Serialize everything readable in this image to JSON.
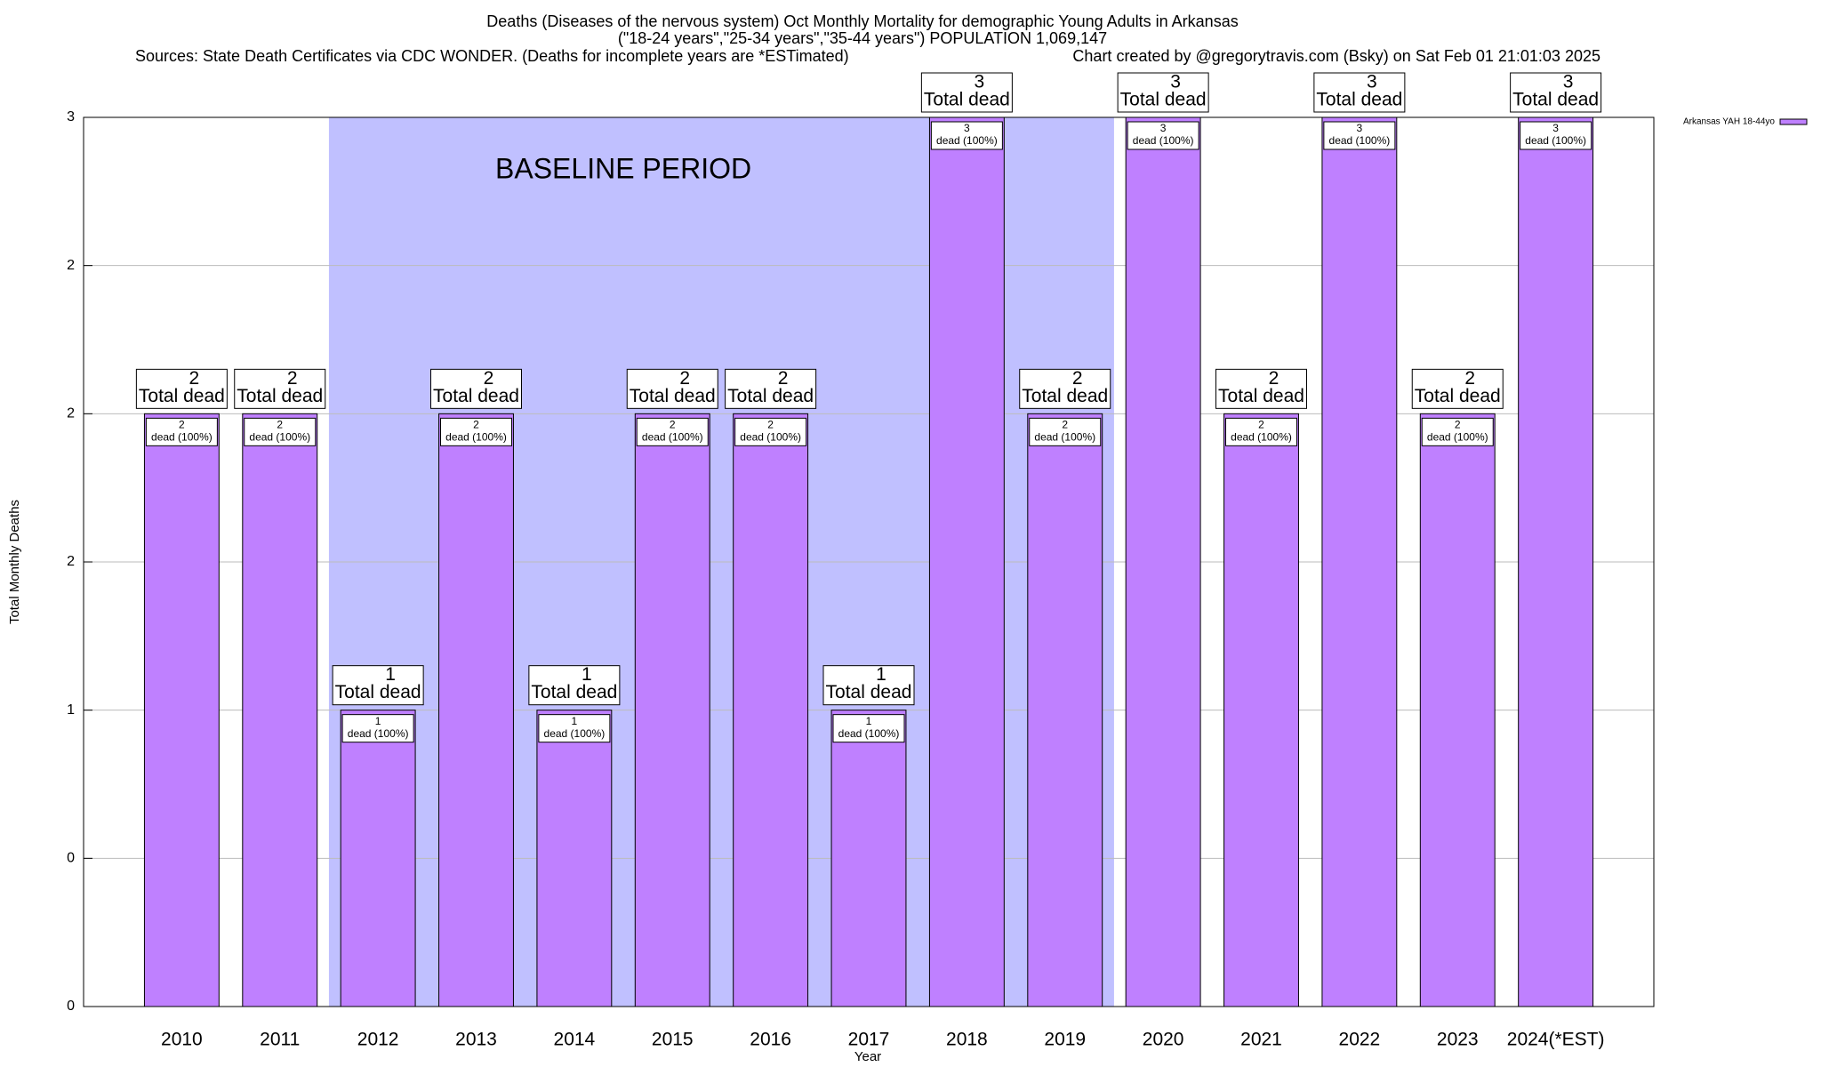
{
  "chart_data": {
    "type": "bar",
    "title": "Deaths (Diseases of the nervous system) Oct Monthly Mortality for demographic Young Adults in Arkansas",
    "subtitle": "(\"18-24 years\",\"25-34 years\",\"35-44 years\") POPULATION 1,069,147",
    "sources": "Sources: State Death Certificates via CDC WONDER. (Deaths for incomplete years are *ESTimated)",
    "credit": "Chart created by @gregorytravis.com (Bsky) on Sat Feb 01 21:01:03 2025",
    "xlabel": "Year",
    "ylabel": "Total Monthly Deaths",
    "categories": [
      "2010",
      "2011",
      "2012",
      "2013",
      "2014",
      "2015",
      "2016",
      "2017",
      "2018",
      "2019",
      "2020",
      "2021",
      "2022",
      "2023",
      "2024(*EST)"
    ],
    "series": [
      {
        "name": "Arkansas YAH 18-44yo",
        "color": "#bf80ff",
        "values": [
          2,
          2,
          1,
          2,
          1,
          2,
          2,
          1,
          3,
          2,
          3,
          2,
          3,
          2,
          3
        ]
      }
    ],
    "top_label_text": "Total dead",
    "inner_label_text": "dead (100%)",
    "baseline": {
      "label": "BASELINE PERIOD",
      "start": "2012",
      "end": "2019",
      "color": "#c0c0ff"
    },
    "ylim": [
      0,
      3
    ],
    "yticks": [
      0,
      {
        "value": 0.5,
        "label": "0"
      },
      1,
      {
        "value": 1.5,
        "label": "2"
      },
      2,
      {
        "value": 2.5,
        "label": "2"
      },
      3
    ],
    "grid": true,
    "legend": "top-right"
  }
}
